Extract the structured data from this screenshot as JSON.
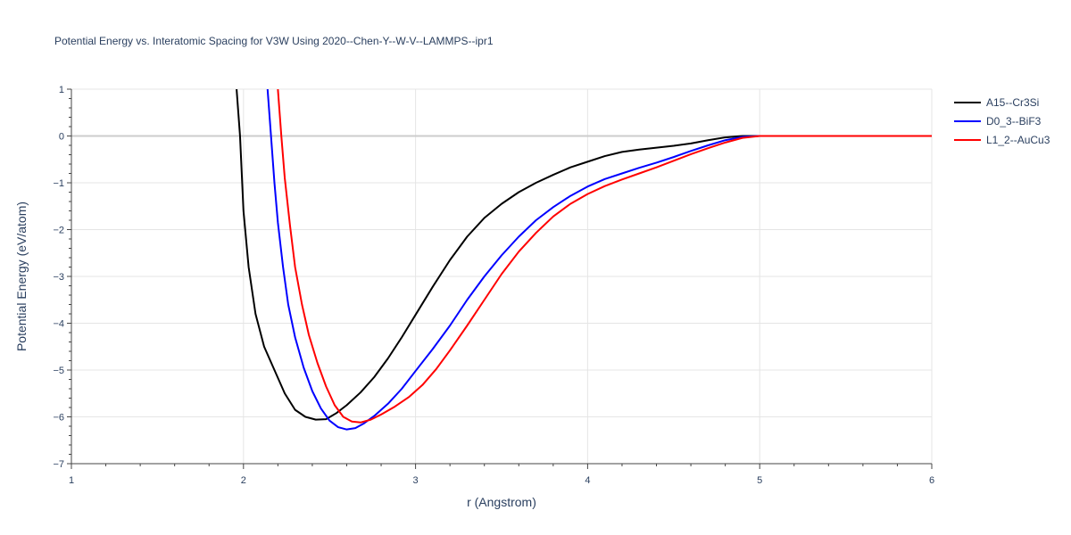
{
  "chart_data": {
    "type": "line",
    "title": "Potential Energy vs. Interatomic Spacing for V3W Using 2020--Chen-Y--W-V--LAMMPS--ipr1",
    "xlabel": "r (Angstrom)",
    "ylabel": "Potential Energy (eV/atom)",
    "xlim": [
      1,
      6
    ],
    "ylim": [
      -7,
      1
    ],
    "x_ticks": [
      1,
      2,
      3,
      4,
      5,
      6
    ],
    "y_ticks": [
      1,
      0,
      -1,
      -2,
      -3,
      -4,
      -5,
      -6,
      -7
    ],
    "x_tick_labels": [
      "1",
      "2",
      "3",
      "4",
      "5",
      "6"
    ],
    "y_tick_labels": [
      "1",
      "0",
      "−1",
      "−2",
      "−3",
      "−4",
      "−5",
      "−6",
      "−7"
    ],
    "grid": true,
    "legend_position": "top-right",
    "series": [
      {
        "name": "A15--Cr3Si",
        "color": "#000000",
        "points": [
          [
            1.96,
            1.0
          ],
          [
            1.98,
            0.0
          ],
          [
            2.0,
            -1.6
          ],
          [
            2.03,
            -2.8
          ],
          [
            2.07,
            -3.8
          ],
          [
            2.12,
            -4.5
          ],
          [
            2.18,
            -5.0
          ],
          [
            2.24,
            -5.5
          ],
          [
            2.3,
            -5.85
          ],
          [
            2.36,
            -6.0
          ],
          [
            2.42,
            -6.06
          ],
          [
            2.48,
            -6.05
          ],
          [
            2.54,
            -5.92
          ],
          [
            2.6,
            -5.75
          ],
          [
            2.68,
            -5.48
          ],
          [
            2.76,
            -5.15
          ],
          [
            2.84,
            -4.75
          ],
          [
            2.92,
            -4.3
          ],
          [
            3.0,
            -3.82
          ],
          [
            3.1,
            -3.22
          ],
          [
            3.2,
            -2.65
          ],
          [
            3.3,
            -2.15
          ],
          [
            3.4,
            -1.75
          ],
          [
            3.5,
            -1.45
          ],
          [
            3.6,
            -1.2
          ],
          [
            3.7,
            -1.0
          ],
          [
            3.8,
            -0.83
          ],
          [
            3.9,
            -0.67
          ],
          [
            4.0,
            -0.55
          ],
          [
            4.1,
            -0.43
          ],
          [
            4.2,
            -0.34
          ],
          [
            4.3,
            -0.29
          ],
          [
            4.4,
            -0.25
          ],
          [
            4.5,
            -0.21
          ],
          [
            4.6,
            -0.16
          ],
          [
            4.7,
            -0.09
          ],
          [
            4.8,
            -0.03
          ],
          [
            4.9,
            0.0
          ],
          [
            5.0,
            0.0
          ],
          [
            5.5,
            0.0
          ],
          [
            6.0,
            0.0
          ]
        ]
      },
      {
        "name": "D0_3--BiF3",
        "color": "#0000ff",
        "points": [
          [
            2.14,
            1.0
          ],
          [
            2.16,
            0.0
          ],
          [
            2.18,
            -1.0
          ],
          [
            2.2,
            -1.85
          ],
          [
            2.23,
            -2.8
          ],
          [
            2.26,
            -3.6
          ],
          [
            2.3,
            -4.3
          ],
          [
            2.35,
            -4.95
          ],
          [
            2.4,
            -5.45
          ],
          [
            2.45,
            -5.82
          ],
          [
            2.5,
            -6.08
          ],
          [
            2.55,
            -6.22
          ],
          [
            2.6,
            -6.27
          ],
          [
            2.65,
            -6.24
          ],
          [
            2.7,
            -6.14
          ],
          [
            2.76,
            -5.98
          ],
          [
            2.84,
            -5.72
          ],
          [
            2.92,
            -5.4
          ],
          [
            3.0,
            -5.02
          ],
          [
            3.1,
            -4.55
          ],
          [
            3.2,
            -4.05
          ],
          [
            3.3,
            -3.5
          ],
          [
            3.4,
            -3.0
          ],
          [
            3.5,
            -2.55
          ],
          [
            3.6,
            -2.15
          ],
          [
            3.7,
            -1.8
          ],
          [
            3.8,
            -1.52
          ],
          [
            3.9,
            -1.28
          ],
          [
            4.0,
            -1.08
          ],
          [
            4.1,
            -0.92
          ],
          [
            4.2,
            -0.8
          ],
          [
            4.3,
            -0.68
          ],
          [
            4.4,
            -0.57
          ],
          [
            4.5,
            -0.45
          ],
          [
            4.6,
            -0.32
          ],
          [
            4.7,
            -0.2
          ],
          [
            4.8,
            -0.09
          ],
          [
            4.9,
            -0.02
          ],
          [
            5.0,
            0.0
          ],
          [
            5.5,
            0.0
          ],
          [
            6.0,
            0.0
          ]
        ]
      },
      {
        "name": "L1_2--AuCu3",
        "color": "#ff0000",
        "points": [
          [
            2.2,
            1.0
          ],
          [
            2.22,
            0.0
          ],
          [
            2.24,
            -0.9
          ],
          [
            2.27,
            -1.9
          ],
          [
            2.3,
            -2.8
          ],
          [
            2.34,
            -3.6
          ],
          [
            2.38,
            -4.25
          ],
          [
            2.43,
            -4.85
          ],
          [
            2.48,
            -5.35
          ],
          [
            2.53,
            -5.75
          ],
          [
            2.58,
            -6.0
          ],
          [
            2.63,
            -6.1
          ],
          [
            2.68,
            -6.12
          ],
          [
            2.74,
            -6.06
          ],
          [
            2.8,
            -5.95
          ],
          [
            2.88,
            -5.78
          ],
          [
            2.96,
            -5.58
          ],
          [
            3.04,
            -5.32
          ],
          [
            3.12,
            -4.98
          ],
          [
            3.2,
            -4.58
          ],
          [
            3.3,
            -4.05
          ],
          [
            3.4,
            -3.5
          ],
          [
            3.5,
            -2.95
          ],
          [
            3.6,
            -2.47
          ],
          [
            3.7,
            -2.07
          ],
          [
            3.8,
            -1.72
          ],
          [
            3.9,
            -1.45
          ],
          [
            4.0,
            -1.24
          ],
          [
            4.1,
            -1.07
          ],
          [
            4.2,
            -0.93
          ],
          [
            4.3,
            -0.8
          ],
          [
            4.4,
            -0.67
          ],
          [
            4.5,
            -0.53
          ],
          [
            4.6,
            -0.39
          ],
          [
            4.7,
            -0.26
          ],
          [
            4.8,
            -0.14
          ],
          [
            4.9,
            -0.04
          ],
          [
            5.0,
            0.0
          ],
          [
            5.5,
            0.0
          ],
          [
            6.0,
            0.0
          ]
        ]
      }
    ]
  }
}
